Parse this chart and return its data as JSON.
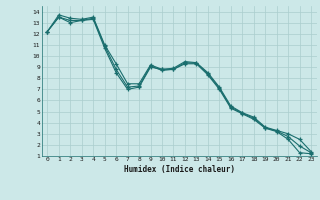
{
  "xlabel": "Humidex (Indice chaleur)",
  "ylabel": "",
  "bg_color": "#cce8e8",
  "grid_color": "#aacece",
  "line_color": "#1a6e6e",
  "xlim": [
    -0.5,
    23.5
  ],
  "ylim": [
    1,
    14.5
  ],
  "xticks": [
    0,
    1,
    2,
    3,
    4,
    5,
    6,
    7,
    8,
    9,
    10,
    11,
    12,
    13,
    14,
    15,
    16,
    17,
    18,
    19,
    20,
    21,
    22,
    23
  ],
  "yticks": [
    1,
    2,
    3,
    4,
    5,
    6,
    7,
    8,
    9,
    10,
    11,
    12,
    13,
    14
  ],
  "series": [
    {
      "x": [
        0,
        1,
        2,
        3,
        4,
        5,
        6,
        7,
        8,
        9,
        10,
        11,
        12,
        13,
        14,
        15,
        16,
        17,
        18,
        19,
        20,
        21,
        22,
        23
      ],
      "y": [
        12.2,
        13.5,
        13.0,
        13.2,
        13.3,
        10.7,
        8.5,
        7.0,
        7.2,
        9.0,
        8.8,
        8.8,
        9.3,
        9.3,
        8.3,
        7.0,
        5.3,
        4.8,
        4.3,
        3.5,
        3.2,
        2.5,
        1.3,
        1.2
      ]
    },
    {
      "x": [
        0,
        1,
        2,
        3,
        4,
        5,
        6,
        7,
        8,
        9,
        10,
        11,
        12,
        13,
        14,
        15,
        16,
        17,
        18,
        19,
        20,
        21,
        22,
        23
      ],
      "y": [
        12.2,
        13.7,
        13.4,
        13.3,
        13.5,
        11.0,
        9.3,
        7.5,
        7.5,
        9.2,
        8.8,
        8.9,
        9.5,
        9.4,
        8.5,
        7.2,
        5.5,
        4.9,
        4.5,
        3.6,
        3.3,
        3.0,
        2.5,
        1.4
      ]
    },
    {
      "x": [
        0,
        1,
        2,
        3,
        4,
        5,
        6,
        7,
        8,
        9,
        10,
        11,
        12,
        13,
        14,
        15,
        16,
        17,
        18,
        19,
        20,
        21,
        22,
        23
      ],
      "y": [
        12.2,
        13.5,
        13.2,
        13.2,
        13.4,
        10.9,
        8.8,
        7.2,
        7.3,
        9.1,
        8.7,
        8.8,
        9.4,
        9.35,
        8.4,
        7.1,
        5.4,
        4.85,
        4.4,
        3.55,
        3.25,
        2.75,
        1.9,
        1.3
      ]
    }
  ]
}
